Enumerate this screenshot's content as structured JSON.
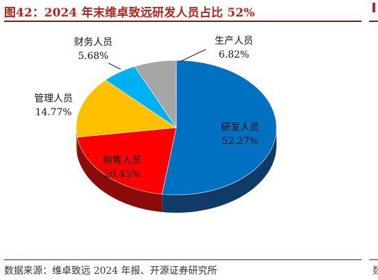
{
  "header": {
    "title": "图42：2024 年末维卓致远研发人员占比 52%"
  },
  "footer": {
    "source": "数据来源：维卓致远 2024 年报、开源证券研究所"
  },
  "edge": {
    "source_fragment": "数"
  },
  "chart_data": {
    "type": "pie",
    "title": "图42：2024 年末维卓致远研发人员占比 52%",
    "categories": [
      "研发人员",
      "销售人员",
      "管理人员",
      "财务人员",
      "生产人员"
    ],
    "values": [
      52.27,
      20.45,
      14.77,
      5.68,
      6.82
    ],
    "value_labels": [
      "52.27%",
      "20.45%",
      "14.77%",
      "5.68%",
      "6.82%"
    ],
    "colors": [
      "#0070c0",
      "#ff0000",
      "#ffc000",
      "#00b0f0",
      "#a6a6a6"
    ],
    "side_colors": [
      "#0f3b66",
      "#8b0a0a",
      "#b88800",
      "#0a6e96",
      "#6b6b6b"
    ],
    "legend": "none"
  }
}
